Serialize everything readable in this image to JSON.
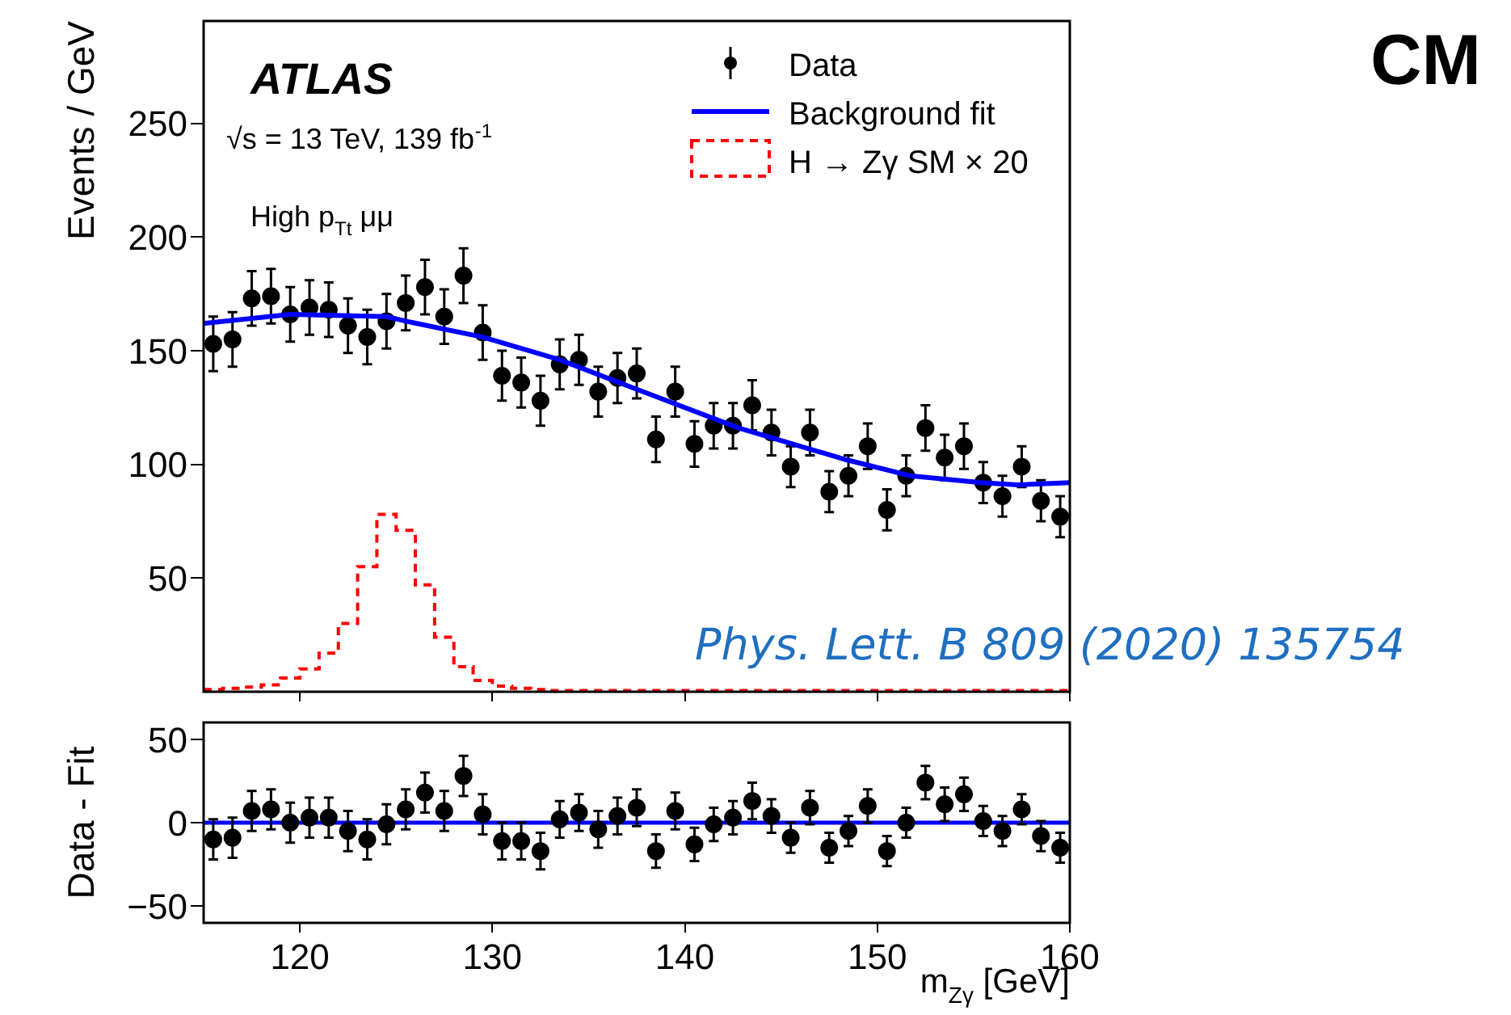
{
  "chart_data": [
    {
      "type": "scatter",
      "ylabel": "Events / GeV",
      "xlim": [
        115,
        160
      ],
      "xticks": [
        120,
        130,
        140,
        150,
        160
      ],
      "ylim": [
        0,
        295
      ],
      "yticks": [
        50,
        100,
        150,
        200,
        250
      ],
      "tick_labels": "y",
      "grid": false,
      "legend": "top right",
      "x": [
        115.5,
        116.5,
        117.5,
        118.5,
        119.5,
        120.5,
        121.5,
        122.5,
        123.5,
        124.5,
        125.5,
        126.5,
        127.5,
        128.5,
        129.5,
        130.5,
        131.5,
        132.5,
        133.5,
        134.5,
        135.5,
        136.5,
        137.5,
        138.5,
        139.5,
        140.5,
        141.5,
        142.5,
        143.5,
        144.5,
        145.5,
        146.5,
        147.5,
        148.5,
        149.5,
        150.5,
        151.5,
        152.5,
        153.5,
        154.5,
        155.5,
        156.5,
        157.5,
        158.5,
        159.5
      ],
      "series": [
        {
          "name": "Data",
          "marker": "circle",
          "color": "#000000",
          "values": [
            153,
            155,
            173,
            174,
            166,
            169,
            168,
            161,
            156,
            163,
            171,
            178,
            165,
            183,
            158,
            139,
            136,
            128,
            144,
            146,
            132,
            138,
            140,
            111,
            132,
            109,
            117,
            117,
            126,
            114,
            99,
            114,
            88,
            95,
            108,
            80,
            95,
            116,
            103,
            108,
            92,
            86,
            99,
            84,
            77
          ],
          "errors": [
            12,
            12,
            12,
            12,
            12,
            12,
            12,
            12,
            12,
            12,
            12,
            12,
            12,
            12,
            12,
            11,
            11,
            11,
            11,
            11,
            11,
            11,
            11,
            10,
            11,
            10,
            10,
            10,
            11,
            10,
            9,
            10,
            9,
            9,
            10,
            9,
            9,
            10,
            10,
            10,
            9,
            9,
            9,
            9,
            9
          ]
        },
        {
          "name": "Background fit",
          "type": "line",
          "color": "#0000ff",
          "x": [
            115,
            119.5,
            124.5,
            125.5,
            129.5,
            133.5,
            137.2,
            142.8,
            148.4,
            151.7,
            155.4,
            157.3,
            160
          ],
          "values": [
            162,
            166,
            165,
            163,
            156,
            146,
            134,
            116,
            102,
            95,
            92,
            91,
            92
          ]
        },
        {
          "name": "H → Zγ SM × 20",
          "type": "step",
          "color": "#ff0000",
          "line_style": "dashed",
          "x": [
            115,
            116,
            117,
            118,
            119,
            120,
            121,
            122,
            123,
            124,
            125,
            126,
            127,
            128,
            129,
            130,
            131,
            132,
            133,
            134,
            135,
            136,
            137,
            138,
            139,
            140,
            141,
            142,
            143,
            144,
            145,
            146,
            147,
            148,
            149,
            150,
            151,
            152,
            153,
            154,
            155,
            156,
            157,
            158,
            159,
            160
          ],
          "values": [
            1,
            1.5,
            2,
            3,
            6,
            10,
            17,
            30,
            55,
            78,
            71,
            47,
            24,
            11,
            5,
            2.5,
            1.5,
            1,
            0.5,
            0.5,
            0.5,
            0.5,
            0.5,
            0.5,
            0.5,
            0.5,
            0.5,
            0.5,
            0.5,
            0.5,
            0.5,
            0.5,
            0.5,
            0.5,
            0.5,
            0.5,
            0.5,
            0.5,
            0.5,
            0.5,
            0.5,
            0.5,
            0.5,
            0.5,
            0.5,
            0.5
          ]
        }
      ],
      "annotations": [
        "ATLAS",
        "√s = 13 TeV, 139 fb$^{-1}$",
        "High p$_{Tt}$ μμ",
        "Phys. Lett. B 809 (2020) 135754",
        "CM"
      ]
    },
    {
      "type": "scatter",
      "xlabel": "m$_{Zγ}$ [GeV]",
      "ylabel": "Data - Fit",
      "xlim": [
        115,
        160
      ],
      "xticks": [
        120,
        130,
        140,
        150,
        160
      ],
      "ylim": [
        -60,
        60
      ],
      "yticks": [
        50,
        0,
        {
          "value": -50,
          "label": "−50"
        }
      ],
      "grid": false,
      "marker": "circle",
      "x": [
        115.5,
        116.5,
        117.5,
        118.5,
        119.5,
        120.5,
        121.5,
        122.5,
        123.5,
        124.5,
        125.5,
        126.5,
        127.5,
        128.5,
        129.5,
        130.5,
        131.5,
        132.5,
        133.5,
        134.5,
        135.5,
        136.5,
        137.5,
        138.5,
        139.5,
        140.5,
        141.5,
        142.5,
        143.5,
        144.5,
        145.5,
        146.5,
        147.5,
        148.5,
        149.5,
        150.5,
        151.5,
        152.5,
        153.5,
        154.5,
        155.5,
        156.5,
        157.5,
        158.5,
        159.5
      ],
      "series": [
        {
          "color": "#000000",
          "values": [
            -10,
            -9,
            7,
            8,
            0,
            3,
            3,
            -5,
            -10,
            -1,
            8,
            18,
            7,
            28,
            5,
            -11,
            -11,
            -17,
            2,
            6,
            -4,
            4,
            9,
            -17,
            7,
            -13,
            -1,
            3,
            13,
            4,
            -9,
            9,
            -15,
            -5,
            10,
            -17,
            0,
            24,
            11,
            17,
            1,
            -5,
            8,
            -8,
            -15
          ],
          "errors": [
            12,
            12,
            12,
            12,
            12,
            12,
            12,
            12,
            12,
            12,
            12,
            12,
            12,
            12,
            12,
            11,
            11,
            11,
            11,
            11,
            11,
            11,
            11,
            10,
            11,
            10,
            10,
            10,
            11,
            10,
            9,
            10,
            9,
            9,
            10,
            9,
            9,
            10,
            10,
            10,
            9,
            9,
            9,
            9,
            9
          ]
        }
      ],
      "ref_lines": [
        {
          "axis": "y",
          "value": 0,
          "color": "#0000ff"
        }
      ]
    }
  ]
}
